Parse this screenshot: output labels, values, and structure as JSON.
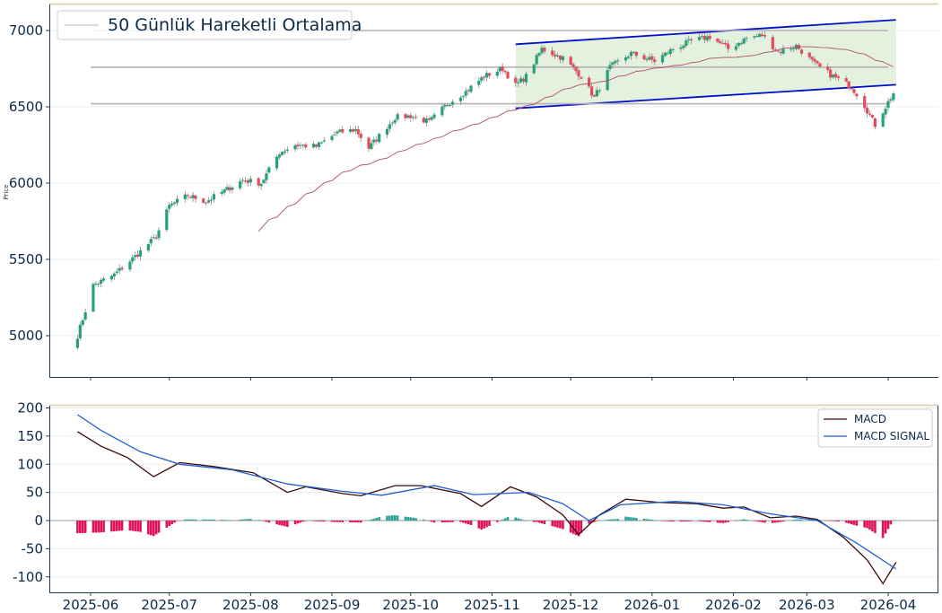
{
  "chart_data": [
    {
      "type": "candlestick",
      "ylabel": "Price",
      "ylim": [
        4700,
        7200
      ],
      "yticks": [
        5000,
        5500,
        6000,
        6500,
        7000
      ],
      "legend": {
        "label": "50 Günlük Hareketli Ortalama",
        "position": "top-left"
      },
      "colors": {
        "up": "#26a17b",
        "down": "#e84a5a",
        "wick": "#7a7a7a",
        "ma": "#b0506a",
        "channel": "#0011cc",
        "channel_fill": "#dcedd6",
        "levels": "#b8b0b8"
      },
      "horizontal_levels": [
        7000,
        6760,
        6520
      ],
      "channel": {
        "upper": {
          "start": [
            "2025-11-10",
            6910
          ],
          "end": [
            "2026-04-04",
            7070
          ]
        },
        "lower": {
          "start": [
            "2025-11-10",
            6490
          ],
          "end": [
            "2026-04-04",
            6645
          ]
        }
      },
      "anchors": [
        [
          "2025-05-27",
          5000
        ],
        [
          "2025-06-02",
          5330
        ],
        [
          "2025-06-10",
          5400
        ],
        [
          "2025-06-18",
          5520
        ],
        [
          "2025-06-26",
          5650
        ],
        [
          "2025-07-01",
          5850
        ],
        [
          "2025-07-08",
          5920
        ],
        [
          "2025-07-15",
          5880
        ],
        [
          "2025-07-22",
          5950
        ],
        [
          "2025-07-29",
          6020
        ],
        [
          "2025-08-05",
          6000
        ],
        [
          "2025-08-12",
          6200
        ],
        [
          "2025-08-18",
          6250
        ],
        [
          "2025-08-26",
          6240
        ],
        [
          "2025-09-03",
          6330
        ],
        [
          "2025-09-10",
          6350
        ],
        [
          "2025-09-15",
          6230
        ],
        [
          "2025-09-25",
          6430
        ],
        [
          "2025-10-01",
          6440
        ],
        [
          "2025-10-08",
          6400
        ],
        [
          "2025-10-15",
          6520
        ],
        [
          "2025-10-22",
          6600
        ],
        [
          "2025-10-29",
          6700
        ],
        [
          "2025-11-05",
          6750
        ],
        [
          "2025-11-10",
          6640
        ],
        [
          "2025-11-14",
          6700
        ],
        [
          "2025-11-20",
          6880
        ],
        [
          "2025-11-28",
          6820
        ],
        [
          "2025-12-05",
          6700
        ],
        [
          "2025-12-10",
          6560
        ],
        [
          "2025-12-16",
          6760
        ],
        [
          "2025-12-24",
          6850
        ],
        [
          "2026-01-02",
          6800
        ],
        [
          "2026-01-09",
          6880
        ],
        [
          "2026-01-16",
          6930
        ],
        [
          "2026-01-23",
          6960
        ],
        [
          "2026-01-30",
          6880
        ],
        [
          "2026-02-06",
          6950
        ],
        [
          "2026-02-12",
          6970
        ],
        [
          "2026-02-18",
          6860
        ],
        [
          "2026-02-25",
          6900
        ],
        [
          "2026-03-04",
          6780
        ],
        [
          "2026-03-11",
          6700
        ],
        [
          "2026-03-18",
          6630
        ],
        [
          "2026-03-22",
          6540
        ],
        [
          "2026-03-27",
          6380
        ],
        [
          "2026-03-30",
          6470
        ],
        [
          "2026-04-03",
          6590
        ]
      ]
    },
    {
      "type": "macd",
      "ylim": [
        -130,
        205
      ],
      "yticks": [
        -100,
        -50,
        0,
        50,
        100,
        150,
        200
      ],
      "legend_position": "top-right",
      "colors": {
        "macd": "#3b0a0a",
        "signal": "#1f5fd1",
        "hist_pos": "#2aa198",
        "hist_neg": "#e0105a"
      },
      "series": [
        {
          "name": "MACD",
          "points": [
            [
              "2025-05-27",
              158
            ],
            [
              "2025-06-05",
              132
            ],
            [
              "2025-06-15",
              112
            ],
            [
              "2025-06-25",
              78
            ],
            [
              "2025-07-05",
              103
            ],
            [
              "2025-07-18",
              96
            ],
            [
              "2025-08-02",
              85
            ],
            [
              "2025-08-15",
              50
            ],
            [
              "2025-08-22",
              60
            ],
            [
              "2025-09-05",
              48
            ],
            [
              "2025-09-12",
              44
            ],
            [
              "2025-09-25",
              62
            ],
            [
              "2025-10-05",
              62
            ],
            [
              "2025-10-20",
              48
            ],
            [
              "2025-10-28",
              25
            ],
            [
              "2025-11-08",
              60
            ],
            [
              "2025-11-18",
              42
            ],
            [
              "2025-11-28",
              10
            ],
            [
              "2025-12-04",
              -25
            ],
            [
              "2025-12-12",
              10
            ],
            [
              "2025-12-22",
              38
            ],
            [
              "2026-01-04",
              32
            ],
            [
              "2026-01-18",
              30
            ],
            [
              "2026-01-28",
              22
            ],
            [
              "2026-02-05",
              24
            ],
            [
              "2026-02-15",
              5
            ],
            [
              "2026-02-25",
              8
            ],
            [
              "2026-03-05",
              2
            ],
            [
              "2026-03-15",
              -30
            ],
            [
              "2026-03-24",
              -70
            ],
            [
              "2026-03-30",
              -112
            ],
            [
              "2026-04-04",
              -74
            ]
          ]
        },
        {
          "name": "MACD SIGNAL",
          "points": [
            [
              "2025-05-27",
              188
            ],
            [
              "2025-06-05",
              160
            ],
            [
              "2025-06-20",
              122
            ],
            [
              "2025-07-05",
              100
            ],
            [
              "2025-07-25",
              90
            ],
            [
              "2025-08-15",
              65
            ],
            [
              "2025-09-05",
              52
            ],
            [
              "2025-09-20",
              45
            ],
            [
              "2025-10-10",
              62
            ],
            [
              "2025-10-25",
              46
            ],
            [
              "2025-11-15",
              50
            ],
            [
              "2025-11-28",
              30
            ],
            [
              "2025-12-08",
              0
            ],
            [
              "2025-12-20",
              28
            ],
            [
              "2026-01-10",
              34
            ],
            [
              "2026-01-28",
              28
            ],
            [
              "2026-02-15",
              12
            ],
            [
              "2026-03-05",
              0
            ],
            [
              "2026-03-20",
              -40
            ],
            [
              "2026-04-04",
              -86
            ]
          ]
        }
      ]
    }
  ],
  "x_axis": {
    "tick_labels": [
      "2025-06",
      "2025-07",
      "2025-08",
      "2025-09",
      "2025-10",
      "2025-11",
      "2025-12",
      "2026-01",
      "2026-02",
      "2026-03",
      "2026-04"
    ]
  }
}
